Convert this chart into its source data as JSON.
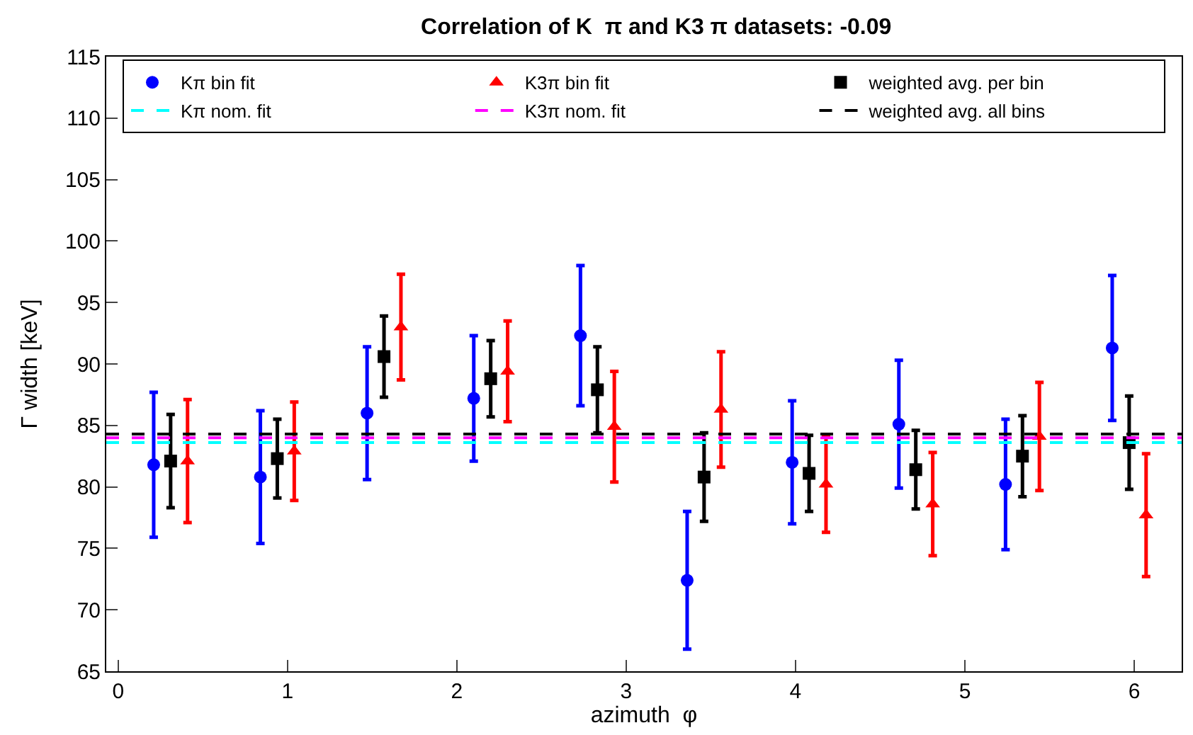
{
  "chart_data": {
    "type": "scatter",
    "title": "Correlation of K  π and K3 π datasets: -0.09",
    "xlabel": "azimuth  φ",
    "ylabel": "Γ width [keV]",
    "xlim": [
      -0.07,
      6.28
    ],
    "xticks": [
      0,
      1,
      2,
      3,
      4,
      5,
      6
    ],
    "ylim": [
      65,
      115
    ],
    "yticks": [
      65,
      70,
      75,
      80,
      85,
      90,
      95,
      100,
      105,
      110,
      115
    ],
    "grid": false,
    "legend": "top",
    "line_style": "dashed",
    "series": [
      {
        "name": "Kπ bin fit",
        "color": "#0000ff",
        "marker": "circle",
        "x": [
          0.21,
          0.84,
          1.47,
          2.1,
          2.73,
          3.36,
          3.98,
          4.61,
          5.24,
          5.87
        ],
        "values": [
          81.8,
          80.8,
          86.0,
          87.2,
          92.3,
          72.4,
          82.0,
          85.1,
          80.2,
          91.3
        ],
        "errors": [
          5.9,
          5.4,
          5.4,
          5.1,
          5.7,
          5.6,
          5.0,
          5.2,
          5.3,
          5.9
        ]
      },
      {
        "name": "K3π bin fit",
        "color": "#ff0000",
        "marker": "triangle",
        "x": [
          0.41,
          1.04,
          1.67,
          2.3,
          2.93,
          3.56,
          4.18,
          4.81,
          5.44,
          6.07
        ],
        "values": [
          82.1,
          82.9,
          93.0,
          89.4,
          84.9,
          86.3,
          80.2,
          78.6,
          84.1,
          77.7
        ],
        "errors": [
          5.0,
          4.0,
          4.3,
          4.1,
          4.5,
          4.7,
          3.9,
          4.2,
          4.4,
          5.0
        ]
      },
      {
        "name": "weighted avg. per bin",
        "color": "#000000",
        "marker": "square",
        "x": [
          0.31,
          0.94,
          1.57,
          2.2,
          2.83,
          3.46,
          4.08,
          4.71,
          5.34,
          5.97
        ],
        "values": [
          82.1,
          82.3,
          90.6,
          88.8,
          87.9,
          80.8,
          81.1,
          81.4,
          82.5,
          83.6
        ],
        "errors": [
          3.8,
          3.2,
          3.3,
          3.1,
          3.5,
          3.6,
          3.1,
          3.2,
          3.3,
          3.8
        ]
      }
    ],
    "ref_lines": [
      {
        "axis": "y",
        "value": 83.6,
        "label": "Kπ nom. fit",
        "color": "#00ffff"
      },
      {
        "axis": "y",
        "value": 84.0,
        "label": "K3π nom. fit",
        "color": "#ff00ff"
      },
      {
        "axis": "y",
        "value": 84.3,
        "label": "weighted avg. all bins",
        "color": "#000000"
      }
    ]
  }
}
